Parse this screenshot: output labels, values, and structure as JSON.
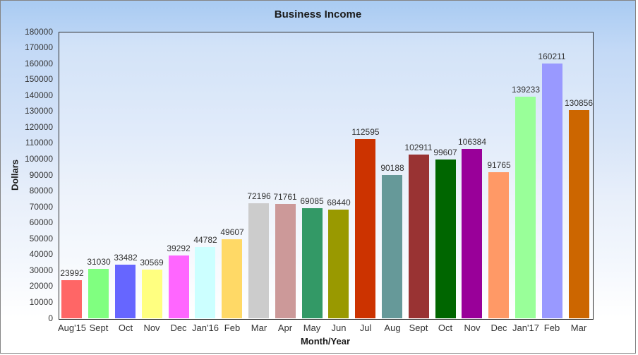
{
  "chart_data": {
    "type": "bar",
    "title": "Business Income",
    "xlabel": "Month/Year",
    "ylabel": "Dollars",
    "categories": [
      "Aug'15",
      "Sept",
      "Oct",
      "Nov",
      "Dec",
      "Jan'16",
      "Feb",
      "Mar",
      "Apr",
      "May",
      "Jun",
      "Jul",
      "Aug",
      "Sept",
      "Oct",
      "Nov",
      "Dec",
      "Jan'17",
      "Feb",
      "Mar"
    ],
    "values": [
      23992,
      31030,
      33482,
      30569,
      39292,
      44782,
      49607,
      72196,
      71761,
      69085,
      68440,
      112595,
      90188,
      102911,
      99607,
      106384,
      91765,
      139233,
      160211,
      130856
    ],
    "bar_colors": [
      "#FF6666",
      "#80FF80",
      "#6666FF",
      "#FFFF80",
      "#FF66FF",
      "#CCFFFF",
      "#FFD966",
      "#CCCCCC",
      "#CC9999",
      "#339966",
      "#999900",
      "#CC3300",
      "#669999",
      "#993333",
      "#006600",
      "#990099",
      "#FF9966",
      "#99FF99",
      "#9999FF",
      "#CC6600"
    ],
    "ylim": [
      0,
      180000
    ],
    "ytick_step": 10000,
    "grid": false,
    "legend": "none",
    "data_labels": true,
    "background_top": "#A9CBF2",
    "background_bottom": "#FFFFFF"
  }
}
